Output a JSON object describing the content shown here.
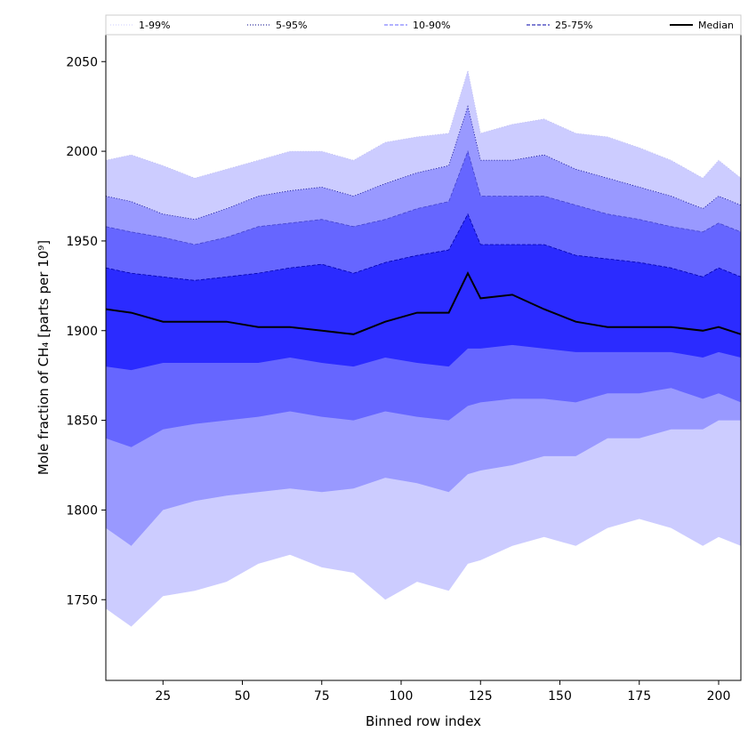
{
  "chart_data": {
    "type": "area",
    "title": "",
    "xlabel": "Binned row index",
    "ylabel": "Mole fraction of CH₄ [parts per 10⁹]",
    "xlim": [
      7,
      207
    ],
    "ylim": [
      1705,
      2065
    ],
    "xticks": [
      25,
      50,
      75,
      100,
      125,
      150,
      175,
      200
    ],
    "yticks": [
      1750,
      1800,
      1850,
      1900,
      1950,
      2000,
      2050
    ],
    "grid": false,
    "legend_position": "top",
    "colors": {
      "band_1_99": "#ccccff",
      "band_5_95": "#9999ff",
      "band_10_90": "#6666ff",
      "band_25_75": "#2b2bff",
      "median": "#000000"
    },
    "legend": [
      {
        "name": "1-99%",
        "style": "dotted",
        "color": "#ccccff"
      },
      {
        "name": "5-95%",
        "style": "dotted",
        "color": "#000088"
      },
      {
        "name": "10-90%",
        "style": "dashed",
        "color": "#6666ff"
      },
      {
        "name": "25-75%",
        "style": "dashed",
        "color": "#0000aa"
      },
      {
        "name": "Median",
        "style": "solid",
        "color": "#000000"
      }
    ],
    "x": [
      7,
      15,
      25,
      35,
      45,
      55,
      65,
      75,
      85,
      95,
      105,
      115,
      121,
      125,
      135,
      145,
      155,
      165,
      175,
      185,
      195,
      200,
      207
    ],
    "series": [
      {
        "name": "1-99%",
        "low": [
          1745,
          1735,
          1752,
          1755,
          1760,
          1770,
          1775,
          1768,
          1765,
          1750,
          1760,
          1755,
          1770,
          1772,
          1780,
          1785,
          1780,
          1790,
          1795,
          1790,
          1780,
          1785,
          1780
        ],
        "high": [
          1995,
          1998,
          1992,
          1985,
          1990,
          1995,
          2000,
          2000,
          1995,
          2005,
          2008,
          2010,
          2045,
          2010,
          2015,
          2018,
          2010,
          2008,
          2002,
          1995,
          1985,
          1995,
          1985
        ]
      },
      {
        "name": "5-95%",
        "low": [
          1790,
          1780,
          1800,
          1805,
          1808,
          1810,
          1812,
          1810,
          1812,
          1818,
          1815,
          1810,
          1820,
          1822,
          1825,
          1830,
          1830,
          1840,
          1840,
          1845,
          1845,
          1850,
          1850
        ],
        "high": [
          1975,
          1972,
          1965,
          1962,
          1968,
          1975,
          1978,
          1980,
          1975,
          1982,
          1988,
          1992,
          2025,
          1995,
          1995,
          1998,
          1990,
          1985,
          1980,
          1975,
          1968,
          1975,
          1970
        ]
      },
      {
        "name": "10-90%",
        "low": [
          1840,
          1835,
          1845,
          1848,
          1850,
          1852,
          1855,
          1852,
          1850,
          1855,
          1852,
          1850,
          1858,
          1860,
          1862,
          1862,
          1860,
          1865,
          1865,
          1868,
          1862,
          1865,
          1860
        ],
        "high": [
          1958,
          1955,
          1952,
          1948,
          1952,
          1958,
          1960,
          1962,
          1958,
          1962,
          1968,
          1972,
          2000,
          1975,
          1975,
          1975,
          1970,
          1965,
          1962,
          1958,
          1955,
          1960,
          1955
        ]
      },
      {
        "name": "25-75%",
        "low": [
          1880,
          1878,
          1882,
          1882,
          1882,
          1882,
          1885,
          1882,
          1880,
          1885,
          1882,
          1880,
          1890,
          1890,
          1892,
          1890,
          1888,
          1888,
          1888,
          1888,
          1885,
          1888,
          1885
        ],
        "high": [
          1935,
          1932,
          1930,
          1928,
          1930,
          1932,
          1935,
          1937,
          1932,
          1938,
          1942,
          1945,
          1965,
          1948,
          1948,
          1948,
          1942,
          1940,
          1938,
          1935,
          1930,
          1935,
          1930
        ]
      },
      {
        "name": "Median",
        "values": [
          1912,
          1910,
          1905,
          1905,
          1905,
          1902,
          1902,
          1900,
          1898,
          1905,
          1910,
          1910,
          1932,
          1918,
          1920,
          1912,
          1905,
          1902,
          1902,
          1902,
          1900,
          1902,
          1898
        ]
      }
    ]
  }
}
